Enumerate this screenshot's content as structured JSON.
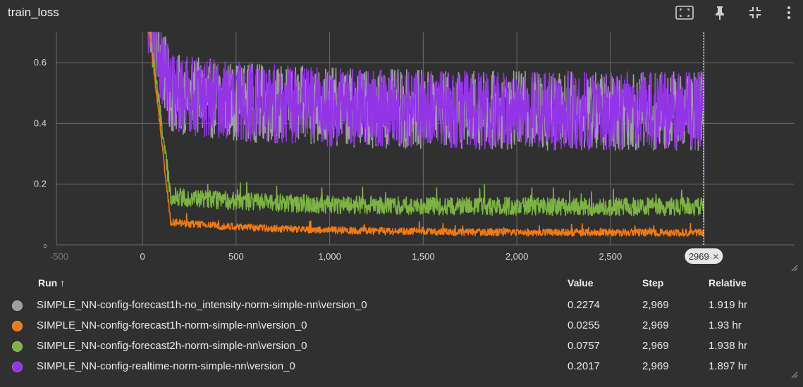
{
  "header": {
    "title": "train_loss",
    "tools": [
      {
        "name": "fit-domain-icon"
      },
      {
        "name": "pin-icon"
      },
      {
        "name": "collapse-icon"
      },
      {
        "name": "more-vert-icon"
      }
    ]
  },
  "chart_data": {
    "type": "line",
    "title": "train_loss",
    "xlabel": "",
    "ylabel": "",
    "xlim": [
      -460,
      3480
    ],
    "ylim": [
      0,
      0.7
    ],
    "x_ticks": [
      -500,
      0,
      500,
      1000,
      1500,
      2000,
      2500,
      3000
    ],
    "x_tick_labels": [
      "-500",
      "0",
      "500",
      "1,000",
      "1,500",
      "2,000",
      "2,500",
      "3,000"
    ],
    "y_ticks": [
      0,
      0.2,
      0.4,
      0.6
    ],
    "y_tick_labels": [
      "0",
      "0.2",
      "0.4",
      "0.6"
    ],
    "grid": true,
    "cursor_step": 2969,
    "cursor_label": "2969",
    "series": [
      {
        "name": "SIMPLE_NN-config-forecast1h-no_intensity-norm-simple-nn\\version_0",
        "color": "#9e9e9e",
        "start": 0.75,
        "mid": 0.5,
        "end": 0.44,
        "noise": 0.13,
        "final": 0.2274
      },
      {
        "name": "SIMPLE_NN-config-forecast1h-norm-simple-nn\\version_0",
        "color": "#f07a12",
        "start": 0.75,
        "mid": 0.075,
        "end": 0.04,
        "noise": 0.012,
        "final": 0.0255
      },
      {
        "name": "SIMPLE_NN-config-forecast2h-norm-simple-nn\\version_0",
        "color": "#7cb342",
        "start": 0.75,
        "mid": 0.16,
        "end": 0.125,
        "noise": 0.03,
        "final": 0.0757
      },
      {
        "name": "SIMPLE_NN-config-realtime-norm-simple-nn\\version_0",
        "color": "#9334e6",
        "start": 0.75,
        "mid": 0.5,
        "end": 0.44,
        "noise": 0.13,
        "final": 0.2017
      }
    ]
  },
  "legend": {
    "headers": {
      "run": "Run ↑",
      "value": "Value",
      "step": "Step",
      "relative": "Relative"
    },
    "rows": [
      {
        "color": "#9e9e9e",
        "run": "SIMPLE_NN-config-forecast1h-no_intensity-norm-simple-nn\\version_0",
        "value": "0.2274",
        "step": "2,969",
        "relative": "1.919 hr"
      },
      {
        "color": "#f07a12",
        "run": "SIMPLE_NN-config-forecast1h-norm-simple-nn\\version_0",
        "value": "0.0255",
        "step": "2,969",
        "relative": "1.93 hr"
      },
      {
        "color": "#7cb342",
        "run": "SIMPLE_NN-config-forecast2h-norm-simple-nn\\version_0",
        "value": "0.0757",
        "step": "2,969",
        "relative": "1.938 hr"
      },
      {
        "color": "#9334e6",
        "run": "SIMPLE_NN-config-realtime-norm-simple-nn\\version_0",
        "value": "0.2017",
        "step": "2,969",
        "relative": "1.897 hr"
      }
    ]
  }
}
